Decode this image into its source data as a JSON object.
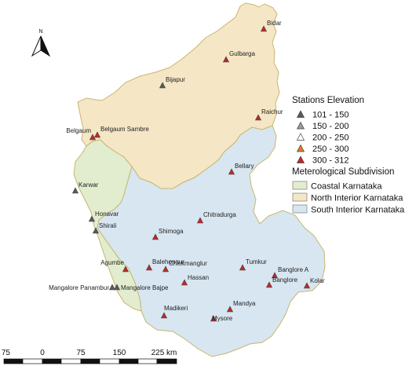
{
  "colors": {
    "coastal": "#e2edcf",
    "north_interior": "#f5e7c5",
    "south_interior": "#d7e6f1",
    "border": "#c9b56f",
    "station_101_150": "#5a5a5a",
    "station_150_200": "#9a9a9a",
    "station_200_250": "#ffffff",
    "station_250_300": "#e07b28",
    "station_300_312": "#c0282a"
  },
  "north_arrow": {
    "label": "N",
    "icon": "north-arrow-icon"
  },
  "regions": [
    {
      "name": "North Interior Karnataka",
      "color_key": "north_interior"
    },
    {
      "name": "Coastal Karnataka",
      "color_key": "coastal"
    },
    {
      "name": "South Interior Karnataka",
      "color_key": "south_interior"
    }
  ],
  "legend": {
    "elevation_title": "Stations Elevation",
    "elevation_classes": [
      {
        "label": "101 - 150",
        "color_key": "station_101_150"
      },
      {
        "label": "150 - 200",
        "color_key": "station_150_200"
      },
      {
        "label": "200 - 250",
        "color_key": "station_200_250"
      },
      {
        "label": "250 - 300",
        "color_key": "station_250_300"
      },
      {
        "label": "300 - 312",
        "color_key": "station_300_312"
      }
    ],
    "subdivision_title": "Meterological Subdivision",
    "subdivision_items": [
      {
        "label": "Coastal Karnataka",
        "color_key": "coastal"
      },
      {
        "label": "North Interior Karnataka",
        "color_key": "north_interior"
      },
      {
        "label": "South Interior Karnataka",
        "color_key": "south_interior"
      }
    ]
  },
  "stations": [
    {
      "name": "Bidar",
      "class": "300 - 312"
    },
    {
      "name": "Gulbarga",
      "class": "300 - 312"
    },
    {
      "name": "Bijapur",
      "class": "101 - 150"
    },
    {
      "name": "Raichur",
      "class": "300 - 312"
    },
    {
      "name": "Belgaum",
      "class": "300 - 312"
    },
    {
      "name": "Belgaum Sambre",
      "class": "300 - 312"
    },
    {
      "name": "Bellary",
      "class": "300 - 312"
    },
    {
      "name": "Karwar",
      "class": "101 - 150"
    },
    {
      "name": "Chitradurga",
      "class": "300 - 312"
    },
    {
      "name": "Honavar",
      "class": "101 - 150"
    },
    {
      "name": "Shirali",
      "class": "101 - 150"
    },
    {
      "name": "Shimoga",
      "class": "300 - 312"
    },
    {
      "name": "Agumbe",
      "class": "300 - 312"
    },
    {
      "name": "Balehonnur",
      "class": "300 - 312"
    },
    {
      "name": "Chickmanglur",
      "class": "300 - 312"
    },
    {
      "name": "Tumkur",
      "class": "300 - 312"
    },
    {
      "name": "Banglore A",
      "class": "300 - 312"
    },
    {
      "name": "Hassan",
      "class": "300 - 312"
    },
    {
      "name": "Banglore",
      "class": "300 - 312"
    },
    {
      "name": "Kolar",
      "class": "300 - 312"
    },
    {
      "name": "Mangalore Panambur",
      "class": "101 - 150"
    },
    {
      "name": "Mangalore Bajpe",
      "class": "101 - 150"
    },
    {
      "name": "Madikeri",
      "class": "300 - 312"
    },
    {
      "name": "Mandya",
      "class": "300 - 312"
    },
    {
      "name": "Mysore",
      "class": "300 - 312"
    }
  ],
  "scale_bar": {
    "unit": "km",
    "ticks": [
      "75",
      "0",
      "75",
      "150",
      "225 km"
    ]
  }
}
